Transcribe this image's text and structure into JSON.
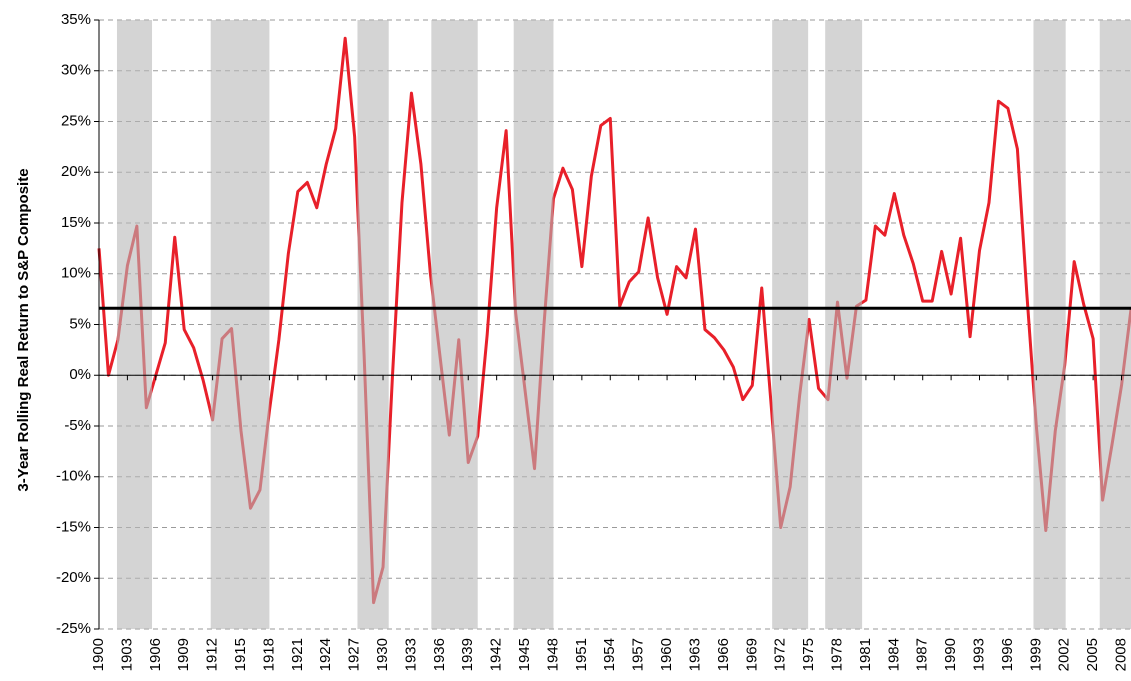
{
  "chart_data": {
    "type": "line",
    "y_label": "3-Year Rolling Real Return to S&P Composite",
    "x": [
      1900,
      1901,
      1902,
      1903,
      1904,
      1905,
      1906,
      1907,
      1908,
      1909,
      1910,
      1911,
      1912,
      1913,
      1914,
      1915,
      1916,
      1917,
      1918,
      1919,
      1920,
      1921,
      1922,
      1923,
      1924,
      1925,
      1926,
      1927,
      1928,
      1929,
      1930,
      1931,
      1932,
      1933,
      1934,
      1935,
      1936,
      1937,
      1938,
      1939,
      1940,
      1941,
      1942,
      1943,
      1944,
      1945,
      1946,
      1947,
      1948,
      1949,
      1950,
      1951,
      1952,
      1953,
      1954,
      1955,
      1956,
      1957,
      1958,
      1959,
      1960,
      1961,
      1962,
      1963,
      1964,
      1965,
      1966,
      1967,
      1968,
      1969,
      1970,
      1971,
      1972,
      1973,
      1974,
      1975,
      1976,
      1977,
      1978,
      1979,
      1980,
      1981,
      1982,
      1983,
      1984,
      1985,
      1986,
      1987,
      1988,
      1989,
      1990,
      1991,
      1992,
      1993,
      1994,
      1995,
      1996,
      1997,
      1998,
      1999,
      2000,
      2001,
      2002,
      2003,
      2004,
      2005,
      2006,
      2007,
      2008,
      2009
    ],
    "series": [
      {
        "color": "#e8202a",
        "values": [
          12.5,
          0,
          3.5,
          10.8,
          14.7,
          -3.2,
          0,
          3.2,
          13.6,
          4.5,
          2.7,
          -0.5,
          -4.4,
          3.6,
          4.6,
          -5.5,
          -13.1,
          -11.3,
          -3.5,
          3.5,
          12,
          18.1,
          19,
          16.5,
          20.8,
          24.3,
          33.2,
          23.5,
          2,
          -22.4,
          -18.9,
          0,
          17,
          27.8,
          20.8,
          10,
          2,
          -5.9,
          3.5,
          -8.6,
          -6,
          4,
          16.5,
          24.1,
          6.2,
          -1.5,
          -9.2,
          5,
          17.4,
          20.4,
          18.3,
          10.7,
          19.6,
          24.6,
          25.3,
          6.8,
          9.2,
          10.2,
          15.5,
          9.6,
          6,
          10.7,
          9.6,
          14.4,
          4.5,
          3.7,
          2.5,
          0.8,
          -2.4,
          -1,
          8.6,
          -3,
          -15,
          -11,
          -2,
          5.5,
          -1.3,
          -2.4,
          7.2,
          -0.3,
          6.8,
          7.4,
          14.7,
          13.8,
          17.9,
          13.8,
          11,
          7.3,
          7.3,
          12.2,
          8,
          13.5,
          3.8,
          12.3,
          17,
          27,
          26.3,
          22.3,
          8,
          -5,
          -15.3,
          -5.5,
          1,
          11.2,
          7,
          3.6,
          -12.3,
          -6.8,
          -1,
          6.5
        ]
      }
    ],
    "mean_line": 6.6,
    "mean_color": "#000000",
    "shaded_periods": [
      [
        1901.9,
        1905.6
      ],
      [
        1911.8,
        1918.0
      ],
      [
        1927.3,
        1930.6
      ],
      [
        1935.1,
        1940.0
      ],
      [
        1943.8,
        1948.0
      ],
      [
        1971.1,
        1974.9
      ],
      [
        1976.7,
        1980.6
      ],
      [
        1998.7,
        2002.1
      ],
      [
        2005.7,
        2009
      ]
    ],
    "shade_color": "#b8b8b8",
    "xlim": [
      1900,
      2009
    ],
    "xticks": [
      1900,
      1903,
      1906,
      1909,
      1912,
      1915,
      1918,
      1921,
      1924,
      1927,
      1930,
      1933,
      1936,
      1939,
      1942,
      1945,
      1948,
      1951,
      1954,
      1957,
      1960,
      1963,
      1966,
      1969,
      1972,
      1975,
      1978,
      1981,
      1984,
      1987,
      1990,
      1993,
      1996,
      1999,
      2002,
      2005,
      2008
    ],
    "ylim": [
      -25,
      35
    ],
    "yticks": [
      {
        "value": -25,
        "label": "-25%"
      },
      {
        "value": -20,
        "label": "-20%"
      },
      {
        "value": -15,
        "label": "-15%"
      },
      {
        "value": -10,
        "label": "-10%"
      },
      {
        "value": -5,
        "label": "-5%"
      },
      {
        "value": 0,
        "label": "0%"
      },
      {
        "value": 5,
        "label": "5%"
      },
      {
        "value": 10,
        "label": "10%"
      },
      {
        "value": 15,
        "label": "15%"
      },
      {
        "value": 20,
        "label": "20%"
      },
      {
        "value": 25,
        "label": "25%"
      },
      {
        "value": 30,
        "label": "30%"
      },
      {
        "value": 35,
        "label": "35%"
      }
    ],
    "grid": true
  }
}
